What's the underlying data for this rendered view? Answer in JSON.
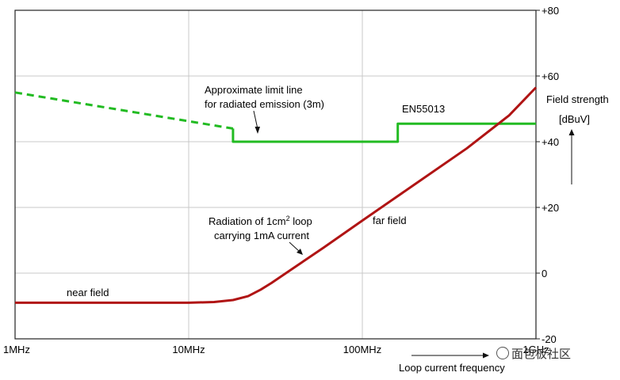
{
  "chart_data": {
    "type": "line",
    "x_scale": "log",
    "x_ticks": [
      {
        "value": 1,
        "label": "1MHz"
      },
      {
        "value": 10,
        "label": "10MHz"
      },
      {
        "value": 100,
        "label": "100MHz"
      },
      {
        "value": 1000,
        "label": "1GHz"
      }
    ],
    "xlim": [
      1,
      1000
    ],
    "ylim": [
      -20,
      80
    ],
    "y_ticks": [
      {
        "value": 80,
        "label": "+80"
      },
      {
        "value": 60,
        "label": "+60"
      },
      {
        "value": 40,
        "label": "+40"
      },
      {
        "value": 20,
        "label": "+20"
      },
      {
        "value": 0,
        "label": "0"
      },
      {
        "value": -20,
        "label": "-20"
      }
    ],
    "grid": true,
    "xlabel": "Loop current frequency",
    "ylabel_line1": "Field strength",
    "ylabel_line2": "[dBuV]",
    "series": [
      {
        "color": "#22bb22",
        "segments": [
          {
            "style": "dashed",
            "points": [
              [
                1,
                55
              ],
              [
                18,
                44
              ]
            ]
          },
          {
            "style": "solid",
            "points": [
              [
                18,
                44
              ],
              [
                18,
                40
              ],
              [
                160,
                40
              ],
              [
                160,
                45.5
              ],
              [
                1000,
                45.5
              ]
            ]
          }
        ]
      },
      {
        "color": "#b01414",
        "segments": [
          {
            "style": "solid",
            "points": [
              [
                1,
                -9
              ],
              [
                10,
                -9
              ],
              [
                14,
                -8.8
              ],
              [
                18,
                -8.2
              ],
              [
                22,
                -7
              ],
              [
                26,
                -5
              ],
              [
                30,
                -3
              ],
              [
                40,
                1.5
              ],
              [
                60,
                7.8
              ],
              [
                100,
                16
              ],
              [
                200,
                27
              ],
              [
                400,
                38
              ],
              [
                700,
                48
              ],
              [
                1000,
                56.5
              ]
            ]
          }
        ]
      }
    ],
    "annotations": {
      "limit_line_1": "Approximate limit line",
      "limit_line_2": "for radiated emission (3m)",
      "standard": "EN55013",
      "radiation_1": "Radiation of 1cm",
      "radiation_sup": "2",
      "radiation_1_tail": " loop",
      "radiation_2": "carrying 1mA current",
      "far_field": "far field",
      "near_field": "near field"
    }
  },
  "watermark": {
    "text": "面包板社区"
  }
}
